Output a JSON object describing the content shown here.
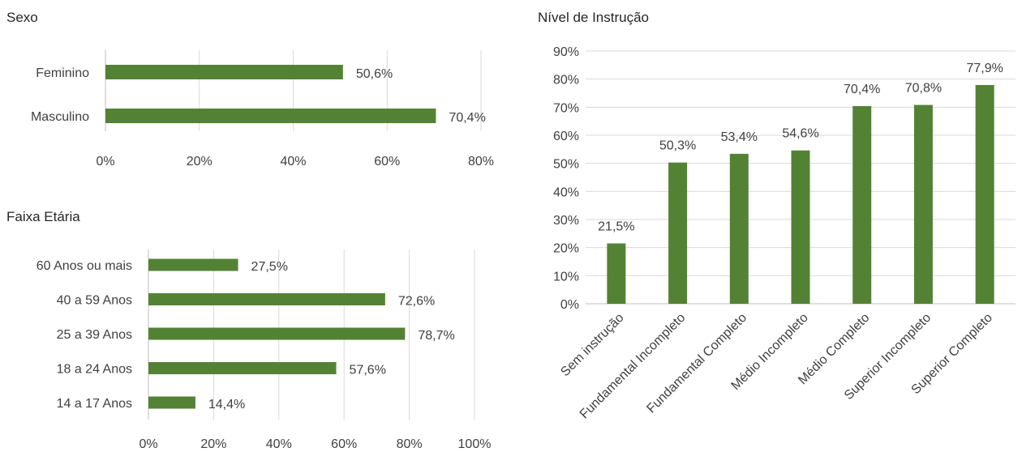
{
  "chart_data": [
    {
      "id": "sexo",
      "type": "bar",
      "orientation": "horizontal",
      "title": "Sexo",
      "categories": [
        "Feminino",
        "Masculino"
      ],
      "values": [
        50.6,
        70.4
      ],
      "labels": [
        "50,6%",
        "70,4%"
      ],
      "xlim": [
        0,
        80
      ],
      "ticks": [
        "0%",
        "20%",
        "40%",
        "60%",
        "80%"
      ],
      "grid": true,
      "legend": "none"
    },
    {
      "id": "faixa",
      "type": "bar",
      "orientation": "horizontal",
      "title": "Faixa Etária",
      "categories": [
        "60 Anos ou mais",
        "40 a 59 Anos",
        "25 a 39 Anos",
        "18 a 24 Anos",
        "14 a 17 Anos"
      ],
      "values": [
        27.5,
        72.6,
        78.7,
        57.6,
        14.4
      ],
      "labels": [
        "27,5%",
        "72,6%",
        "78,7%",
        "57,6%",
        "14,4%"
      ],
      "xlim": [
        0,
        100
      ],
      "ticks": [
        "0%",
        "20%",
        "40%",
        "60%",
        "80%",
        "100%"
      ],
      "grid": true,
      "legend": "none"
    },
    {
      "id": "nivel",
      "type": "bar",
      "orientation": "vertical",
      "title": "Nível de Instrução",
      "categories": [
        "Sem instrução",
        "Fundamental Incompleto",
        "Fundamental Completo",
        "Médio Incompleto",
        "Médio Completo",
        "Superior Incompleto",
        "Superior Completo"
      ],
      "values": [
        21.5,
        50.3,
        53.4,
        54.6,
        70.4,
        70.8,
        77.9
      ],
      "labels": [
        "21,5%",
        "50,3%",
        "53,4%",
        "54,6%",
        "70,4%",
        "70,8%",
        "77,9%"
      ],
      "ylim": [
        0,
        90
      ],
      "ticks": [
        "0%",
        "10%",
        "20%",
        "30%",
        "40%",
        "50%",
        "60%",
        "70%",
        "80%",
        "90%"
      ],
      "grid": true,
      "legend": "none"
    }
  ],
  "colors": {
    "bar": "#548235",
    "grid": "#d9d9d9",
    "axis": "#bfbfbf",
    "text": "#404040",
    "title": "#262626"
  }
}
